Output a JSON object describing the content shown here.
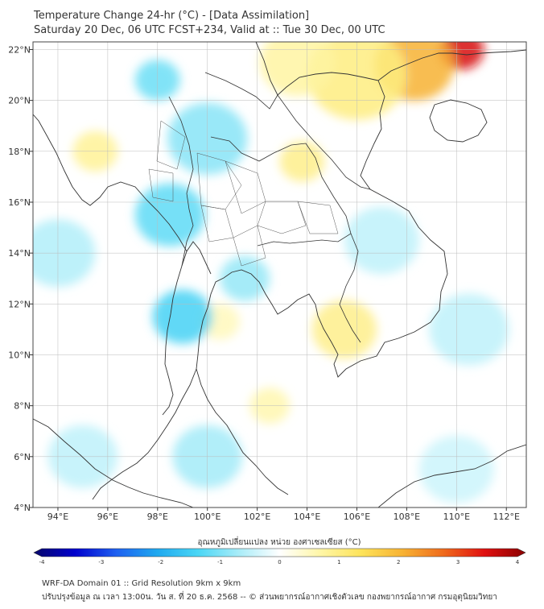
{
  "header": {
    "title": "Temperature Change 24-hr (°C) - [Data Assimilation]",
    "subtitle": "Saturday 20 Dec, 06 UTC FCST+234, Valid at :: Tue 30 Dec, 00 UTC"
  },
  "map": {
    "lon_ticks": [
      "94°E",
      "96°E",
      "98°E",
      "100°E",
      "102°E",
      "104°E",
      "106°E",
      "108°E",
      "110°E",
      "112°E"
    ],
    "lon_values": [
      94,
      96,
      98,
      100,
      102,
      104,
      106,
      108,
      110,
      112
    ],
    "lat_ticks": [
      "22°N",
      "20°N",
      "18°N",
      "16°N",
      "14°N",
      "12°N",
      "10°N",
      "8°N",
      "6°N",
      "4°N"
    ],
    "lat_values": [
      22,
      20,
      18,
      16,
      14,
      12,
      10,
      8,
      6,
      4
    ],
    "lon_range": [
      93,
      112.8
    ],
    "lat_range": [
      4,
      22.3
    ],
    "field_blobs": [
      {
        "lon": 110.2,
        "lat": 22.0,
        "value": 3.4,
        "spread": 0.9
      },
      {
        "lon": 108.3,
        "lat": 21.4,
        "value": 2.0,
        "spread": 1.6
      },
      {
        "lon": 106.0,
        "lat": 21.0,
        "value": 1.0,
        "spread": 2.0
      },
      {
        "lon": 103.6,
        "lat": 21.5,
        "value": 0.7,
        "spread": 1.5
      },
      {
        "lon": 103.8,
        "lat": 17.6,
        "value": 0.9,
        "spread": 0.9
      },
      {
        "lon": 95.5,
        "lat": 18.0,
        "value": 0.8,
        "spread": 0.9
      },
      {
        "lon": 105.5,
        "lat": 11.0,
        "value": 0.9,
        "spread": 1.3
      },
      {
        "lon": 102.5,
        "lat": 8.0,
        "value": 0.6,
        "spread": 0.8
      },
      {
        "lon": 100.5,
        "lat": 11.3,
        "value": 0.5,
        "spread": 0.8
      },
      {
        "lon": 99.0,
        "lat": 11.5,
        "value": -1.4,
        "spread": 1.2
      },
      {
        "lon": 98.5,
        "lat": 15.5,
        "value": -1.2,
        "spread": 1.4
      },
      {
        "lon": 100.0,
        "lat": 18.5,
        "value": -0.9,
        "spread": 1.6
      },
      {
        "lon": 98.0,
        "lat": 20.8,
        "value": -1.1,
        "spread": 0.9
      },
      {
        "lon": 101.5,
        "lat": 13.0,
        "value": -0.8,
        "spread": 1.0
      },
      {
        "lon": 94.0,
        "lat": 14.0,
        "value": -0.6,
        "spread": 1.5
      },
      {
        "lon": 107.0,
        "lat": 14.5,
        "value": -0.5,
        "spread": 1.5
      },
      {
        "lon": 110.5,
        "lat": 11.0,
        "value": -0.5,
        "spread": 1.6
      },
      {
        "lon": 100.0,
        "lat": 6.0,
        "value": -0.7,
        "spread": 1.4
      },
      {
        "lon": 95.0,
        "lat": 6.0,
        "value": -0.5,
        "spread": 1.4
      },
      {
        "lon": 110.0,
        "lat": 5.5,
        "value": -0.4,
        "spread": 1.5
      }
    ]
  },
  "colorbar": {
    "label": "อุณหภูมิเปลี่ยนแปลง หน่วย องศาเซลเซียส (°C)",
    "ticks": [
      "-4",
      "-3",
      "-2",
      "-1",
      "0",
      "1",
      "2",
      "3",
      "4"
    ],
    "tick_values": [
      -4,
      -3,
      -2,
      -1,
      0,
      1,
      2,
      3,
      4
    ],
    "range": [
      -4,
      4
    ],
    "colors": [
      "#08086b",
      "#0000cd",
      "#1e5ff0",
      "#1fa8ef",
      "#4ad6f5",
      "#a8ecf8",
      "#ffffff",
      "#fff6a6",
      "#fde35a",
      "#f7b233",
      "#ef6a1c",
      "#e01010",
      "#8b0000"
    ]
  },
  "footer": {
    "line1": "WRF-DA Domain 01 :: Grid Resolution 9km x 9km",
    "line2": "ปรับปรุงข้อมูล ณ เวลา 13:00น. วัน ส. ที่ 20 ธ.ค. 2568 -- © ส่วนพยากรณ์อากาศเชิงตัวเลข กองพยากรณ์อากาศ กรมอุตุนิยมวิทยา"
  }
}
